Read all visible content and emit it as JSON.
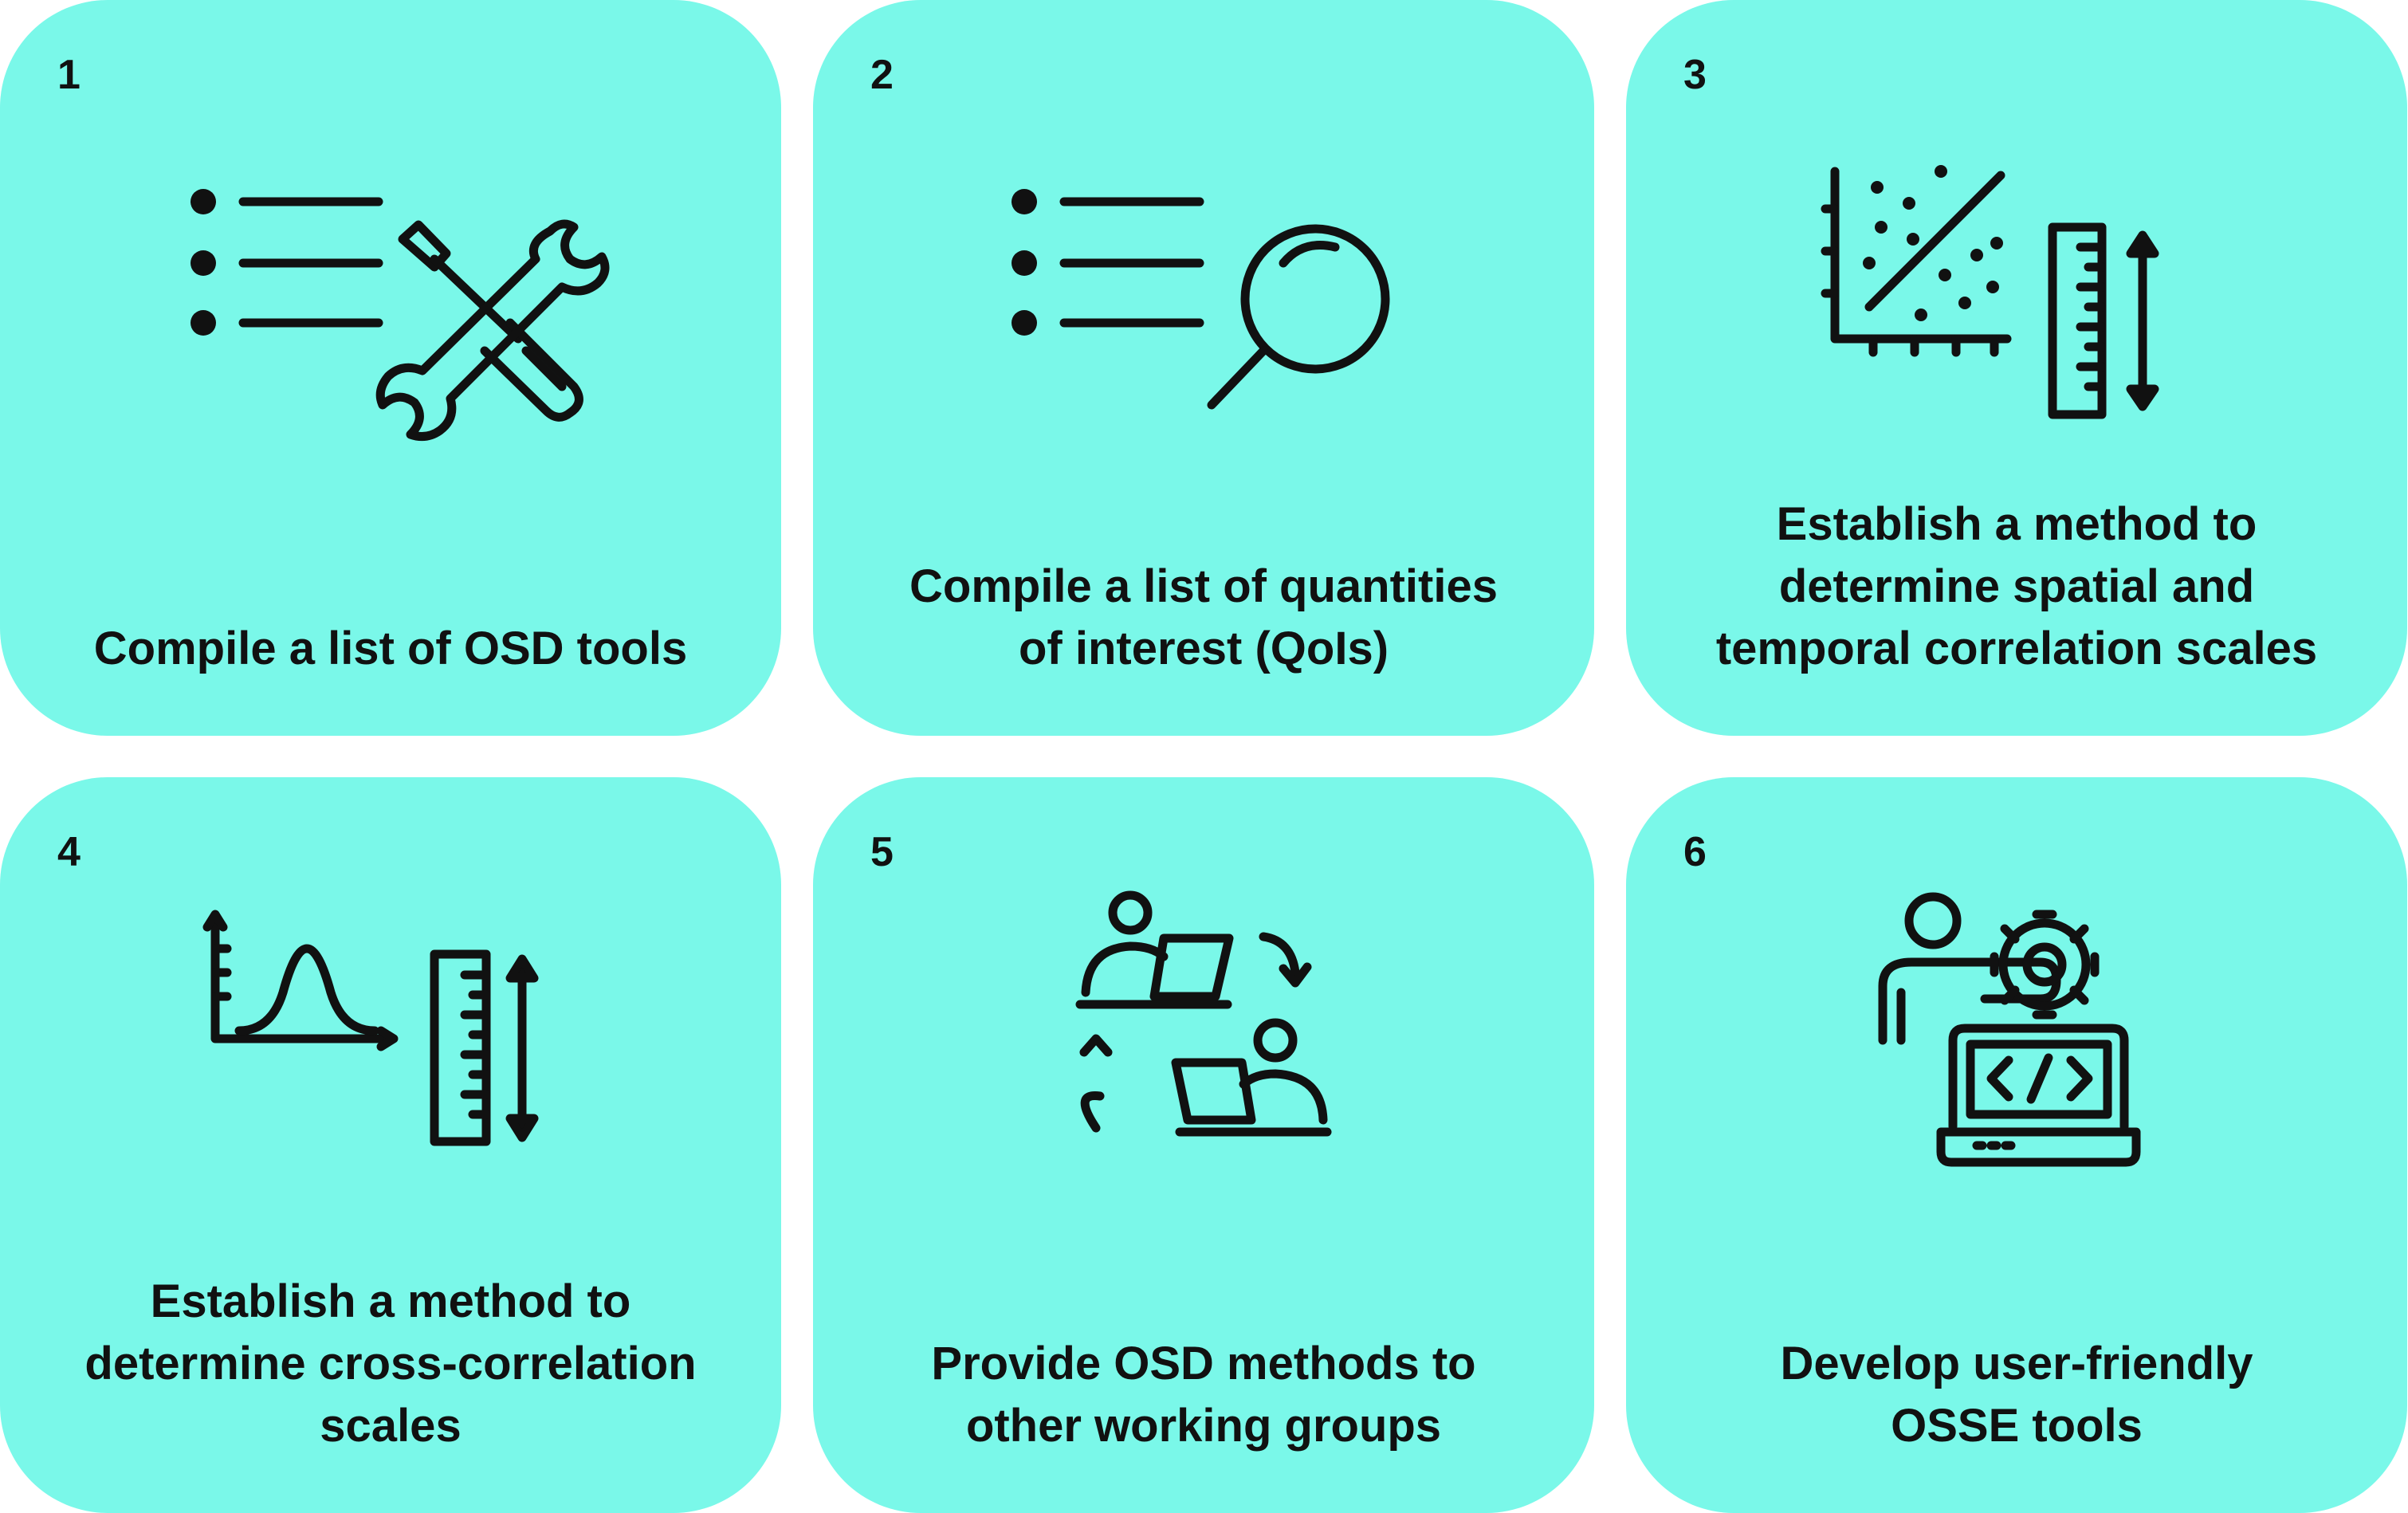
{
  "steps": [
    {
      "number": "1",
      "title": "Compile a list of OSD tools",
      "icon": "list-tools-icon"
    },
    {
      "number": "2",
      "title": "Compile a list of quantities\nof interest (QoIs)",
      "icon": "list-search-icon"
    },
    {
      "number": "3",
      "title": "Establish a method to\ndetermine spatial and\ntemporal correlation scales",
      "icon": "scatter-ruler-icon"
    },
    {
      "number": "4",
      "title": "Establish a method to\ndetermine cross-correlation\nscales",
      "icon": "distribution-ruler-icon"
    },
    {
      "number": "5",
      "title": "Provide OSD methods to\nother working groups",
      "icon": "people-exchange-icon"
    },
    {
      "number": "6",
      "title": "Develop user-friendly\nOSSE tools",
      "icon": "developer-laptop-icon"
    }
  ],
  "colors": {
    "card_background": "#7af8e9",
    "text": "#111111",
    "page_background": "#ffffff"
  }
}
